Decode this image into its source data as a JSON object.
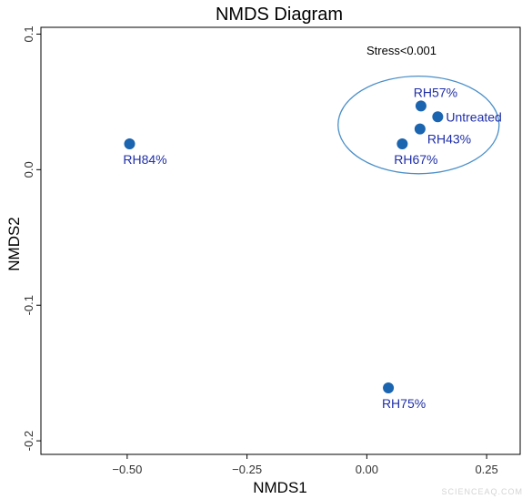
{
  "chart_data": {
    "type": "scatter",
    "title": "NMDS Diagram",
    "xlabel": "NMDS1",
    "ylabel": "NMDS2",
    "xlim": [
      -0.68,
      0.32
    ],
    "ylim": [
      -0.21,
      0.105
    ],
    "xticks": [
      -0.5,
      -0.25,
      0.0,
      0.25
    ],
    "xtick_labels": [
      "−0.50",
      "−0.25",
      "0.00",
      "0.25"
    ],
    "yticks": [
      -0.2,
      -0.1,
      0.0,
      0.1
    ],
    "ytick_labels": [
      "-0.2",
      "-0.1",
      "0.0",
      "0.1"
    ],
    "grid": false,
    "point_color": "#1a64b0",
    "label_color": "#1f2fa8",
    "points": [
      {
        "label": "RH84%",
        "x": -0.495,
        "y": 0.019
      },
      {
        "label": "RH57%",
        "x": 0.113,
        "y": 0.047
      },
      {
        "label": "Untreated",
        "x": 0.148,
        "y": 0.039
      },
      {
        "label": "RH43%",
        "x": 0.111,
        "y": 0.03
      },
      {
        "label": "RH67%",
        "x": 0.074,
        "y": 0.019
      },
      {
        "label": "RH75%",
        "x": 0.045,
        "y": -0.161
      }
    ],
    "annotation": "Stress<0.001",
    "ellipse": {
      "cx": 0.108,
      "cy": 0.033,
      "rx": 0.168,
      "ry": 0.036,
      "color": "#4a8fc8"
    }
  },
  "watermark": "SCIENCEAQ.COM"
}
